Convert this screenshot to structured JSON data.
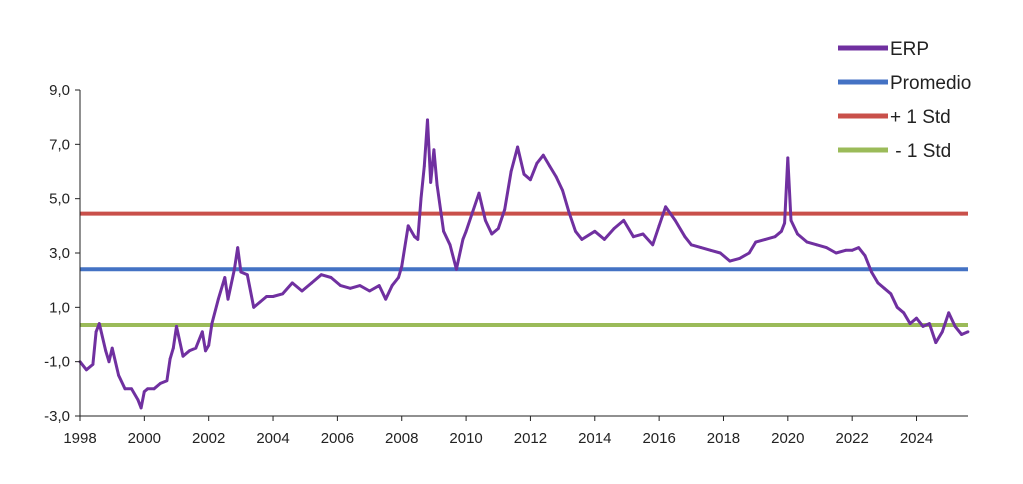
{
  "chart_data": {
    "type": "line",
    "title": "",
    "xlabel": "",
    "ylabel": "",
    "xlim": [
      1998,
      2025.6
    ],
    "ylim": [
      -3.0,
      9.0
    ],
    "grid": false,
    "legend_position": "top-right",
    "x_ticks": [
      "1998",
      "2000",
      "2002",
      "2004",
      "2006",
      "2008",
      "2010",
      "2012",
      "2014",
      "2016",
      "2018",
      "2020",
      "2022",
      "2024"
    ],
    "y_ticks": [
      "9,0",
      "7,0",
      "5,0",
      "3,0",
      "1,0",
      "-1,0",
      "-3,0"
    ],
    "series": [
      {
        "name": "ERP",
        "color": "#7030a0",
        "x": [
          1998.0,
          1998.2,
          1998.4,
          1998.5,
          1998.6,
          1998.8,
          1998.9,
          1999.0,
          1999.2,
          1999.4,
          1999.6,
          1999.8,
          1999.9,
          2000.0,
          2000.1,
          2000.3,
          2000.5,
          2000.7,
          2000.8,
          2000.9,
          2001.0,
          2001.2,
          2001.4,
          2001.6,
          2001.8,
          2001.9,
          2002.0,
          2002.1,
          2002.3,
          2002.5,
          2002.6,
          2002.8,
          2002.9,
          2003.0,
          2003.2,
          2003.4,
          2003.6,
          2003.8,
          2004.0,
          2004.3,
          2004.6,
          2004.9,
          2005.2,
          2005.5,
          2005.8,
          2006.1,
          2006.4,
          2006.7,
          2007.0,
          2007.3,
          2007.5,
          2007.7,
          2007.9,
          2008.0,
          2008.2,
          2008.4,
          2008.5,
          2008.6,
          2008.7,
          2008.8,
          2008.9,
          2009.0,
          2009.1,
          2009.3,
          2009.5,
          2009.7,
          2009.9,
          2010.0,
          2010.2,
          2010.4,
          2010.6,
          2010.8,
          2011.0,
          2011.2,
          2011.4,
          2011.6,
          2011.8,
          2012.0,
          2012.2,
          2012.4,
          2012.6,
          2012.8,
          2013.0,
          2013.2,
          2013.4,
          2013.6,
          2014.0,
          2014.3,
          2014.6,
          2014.9,
          2015.2,
          2015.5,
          2015.8,
          2016.0,
          2016.2,
          2016.5,
          2016.8,
          2017.0,
          2017.3,
          2017.6,
          2017.9,
          2018.2,
          2018.5,
          2018.8,
          2019.0,
          2019.3,
          2019.6,
          2019.8,
          2019.9,
          2020.0,
          2020.1,
          2020.3,
          2020.6,
          2020.9,
          2021.2,
          2021.5,
          2021.8,
          2022.0,
          2022.2,
          2022.4,
          2022.6,
          2022.8,
          2023.0,
          2023.2,
          2023.4,
          2023.6,
          2023.8,
          2024.0,
          2024.2,
          2024.4,
          2024.6,
          2024.8,
          2025.0,
          2025.2,
          2025.4,
          2025.6
        ],
        "values": [
          -1.0,
          -1.3,
          -1.1,
          0.1,
          0.4,
          -0.6,
          -1.0,
          -0.5,
          -1.5,
          -2.0,
          -2.0,
          -2.4,
          -2.7,
          -2.1,
          -2.0,
          -2.0,
          -1.8,
          -1.7,
          -0.9,
          -0.5,
          0.3,
          -0.8,
          -0.6,
          -0.5,
          0.1,
          -0.6,
          -0.4,
          0.4,
          1.3,
          2.1,
          1.3,
          2.4,
          3.2,
          2.3,
          2.2,
          1.0,
          1.2,
          1.4,
          1.4,
          1.5,
          1.9,
          1.6,
          1.9,
          2.2,
          2.1,
          1.8,
          1.7,
          1.8,
          1.6,
          1.8,
          1.3,
          1.8,
          2.1,
          2.5,
          4.0,
          3.6,
          3.5,
          5.0,
          6.2,
          7.9,
          5.6,
          6.8,
          5.5,
          3.8,
          3.3,
          2.4,
          3.5,
          3.8,
          4.5,
          5.2,
          4.2,
          3.7,
          3.9,
          4.6,
          6.0,
          6.9,
          5.9,
          5.7,
          6.3,
          6.6,
          6.2,
          5.8,
          5.3,
          4.5,
          3.8,
          3.5,
          3.8,
          3.5,
          3.9,
          4.2,
          3.6,
          3.7,
          3.3,
          4.0,
          4.7,
          4.2,
          3.6,
          3.3,
          3.2,
          3.1,
          3.0,
          2.7,
          2.8,
          3.0,
          3.4,
          3.5,
          3.6,
          3.8,
          4.1,
          6.5,
          4.2,
          3.7,
          3.4,
          3.3,
          3.2,
          3.0,
          3.1,
          3.1,
          3.2,
          2.9,
          2.3,
          1.9,
          1.7,
          1.5,
          1.0,
          0.8,
          0.4,
          0.6,
          0.3,
          0.4,
          -0.3,
          0.1,
          0.8,
          0.3,
          0.0,
          0.1
        ]
      },
      {
        "name": "Promedio",
        "color": "#4472c4",
        "constant": 2.4
      },
      {
        "name": "+ 1 Std",
        "color": "#c9504a",
        "constant": 4.45
      },
      {
        "name": " - 1 Std",
        "color": "#9bbb59",
        "constant": 0.35
      }
    ]
  }
}
